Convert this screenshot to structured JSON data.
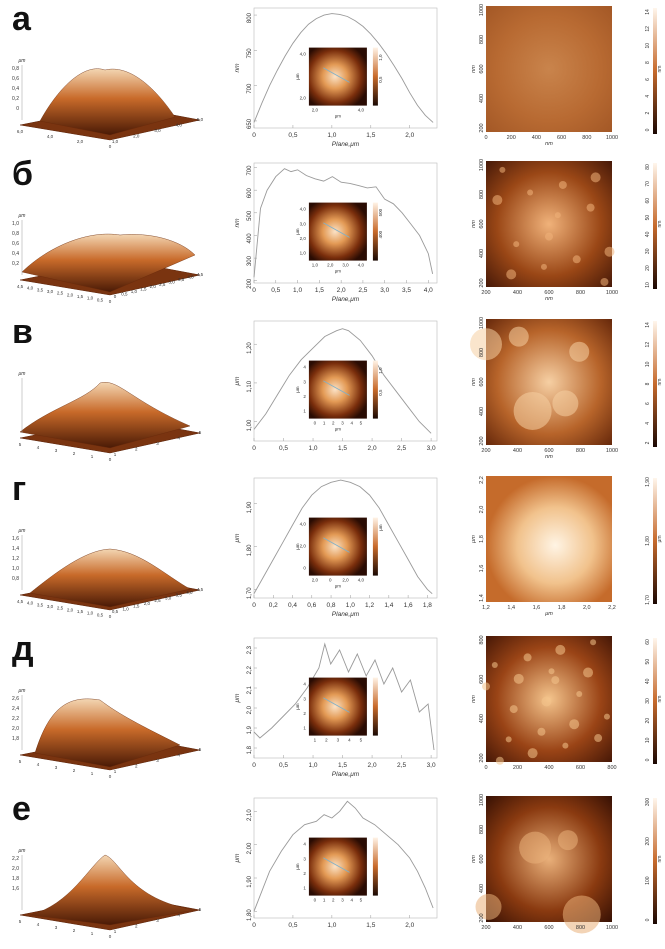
{
  "rows": [
    {
      "label": "а",
      "profile": {
        "ylabel": "nm",
        "xlabel": "Plane,μm",
        "yticks": [
          "650",
          "700",
          "750",
          "800"
        ],
        "xticks": [
          "0",
          "0,5",
          "1,0",
          "1,5",
          "2,0"
        ],
        "inset_xticks": [
          "2,0",
          "4,0"
        ],
        "inset_yticks": [
          "4,0",
          "2,0"
        ],
        "inset_ylabel": "μm",
        "inset_xlabel": "μm",
        "inset_cb": [
          "1,0",
          "0,5"
        ]
      },
      "surface": {
        "zlabel": "μm",
        "zticks": [
          "0,8",
          "0,6",
          "0,4",
          "0,2",
          "0"
        ],
        "axticks_left": [
          "6,0",
          "4,0",
          "2,0",
          "0"
        ],
        "axticks_right": [
          "1,0",
          "2,0",
          "3,0",
          "4,0",
          "5,0"
        ]
      },
      "map": {
        "ylabel": "nm",
        "xlabel": "nm",
        "xticks": [
          "0",
          "200",
          "400",
          "600",
          "800",
          "1000"
        ],
        "yticks": [
          "1000",
          "800",
          "600",
          "400",
          "200"
        ]
      },
      "colorbar": {
        "ticks": [
          "14",
          "12",
          "10",
          "8",
          "6",
          "4",
          "2",
          "0"
        ],
        "unit": "nm"
      }
    },
    {
      "label": "б",
      "profile": {
        "ylabel": "nm",
        "xlabel": "Plane,μm",
        "yticks": [
          "200",
          "300",
          "400",
          "500",
          "600",
          "700"
        ],
        "xticks": [
          "0",
          "0,5",
          "1,0",
          "1,5",
          "2,0",
          "2,5",
          "3,0",
          "3,5",
          "4,0"
        ],
        "inset_xticks": [
          "1,0",
          "2,0",
          "3,0",
          "4,0"
        ],
        "inset_yticks": [
          "4,0",
          "3,0",
          "2,0",
          "1,0"
        ],
        "inset_ylabel": "μm",
        "inset_xlabel": "μm",
        "inset_cb": [
          "500",
          "400"
        ]
      },
      "surface": {
        "zlabel": "μm",
        "zticks": [
          "1,0",
          "0,8",
          "0,6",
          "0,4",
          "0,2"
        ],
        "axticks_left": [
          "4,5",
          "4,0",
          "3,5",
          "3,0",
          "2,5",
          "2,0",
          "1,5",
          "1,0",
          "0,5",
          "0"
        ],
        "axticks_right": [
          "0",
          "0,5",
          "1,0",
          "1,5",
          "2,0",
          "2,5",
          "3,0",
          "3,5",
          "4,0",
          "4,5"
        ]
      },
      "map": {
        "ylabel": "nm",
        "xlabel": "nm",
        "xticks": [
          "200",
          "400",
          "600",
          "800",
          "1000"
        ],
        "yticks": [
          "1000",
          "800",
          "600",
          "400",
          "200"
        ]
      },
      "colorbar": {
        "ticks": [
          "80",
          "70",
          "60",
          "50",
          "40",
          "30",
          "20",
          "10"
        ],
        "unit": "nm"
      }
    },
    {
      "label": "в",
      "profile": {
        "ylabel": "μm",
        "xlabel": "",
        "yticks": [
          "1,00",
          "1,10",
          "1,20"
        ],
        "xticks": [
          "0",
          "0,5",
          "1,0",
          "1,5",
          "2,0",
          "2,5",
          "3,0"
        ],
        "inset_xticks": [
          "0",
          "1",
          "2",
          "3",
          "4",
          "5"
        ],
        "inset_yticks": [
          "4",
          "3",
          "2",
          "1"
        ],
        "inset_ylabel": "μm",
        "inset_xlabel": "μm",
        "inset_cb": [
          "1,0",
          "0,5"
        ]
      },
      "surface": {
        "zlabel": "μm",
        "zticks": [],
        "axticks_left": [
          "5",
          "4",
          "3",
          "2",
          "1",
          "0"
        ],
        "axticks_right": [
          "1",
          "2",
          "3",
          "4",
          "5"
        ]
      },
      "map": {
        "ylabel": "nm",
        "xlabel": "nm",
        "xticks": [
          "200",
          "400",
          "600",
          "800",
          "1000"
        ],
        "yticks": [
          "1000",
          "800",
          "600",
          "400",
          "200"
        ]
      },
      "colorbar": {
        "ticks": [
          "14",
          "12",
          "10",
          "8",
          "6",
          "4",
          "2"
        ],
        "unit": "nm"
      }
    },
    {
      "label": "г",
      "profile": {
        "ylabel": "μm",
        "xlabel": "Plane,μm",
        "yticks": [
          "1,70",
          "1,80",
          "1,90"
        ],
        "xticks": [
          "0",
          "0,2",
          "0,4",
          "0,6",
          "0,8",
          "1,0",
          "1,2",
          "1,4",
          "1,6",
          "1,8"
        ],
        "inset_xticks": [
          "2,0",
          "0",
          "2,0",
          "4,0"
        ],
        "inset_yticks": [
          "4,0",
          "2,0",
          "0"
        ],
        "inset_ylabel": "μm",
        "inset_xlabel": "μm",
        "inset_cb": [
          "μm"
        ]
      },
      "surface": {
        "zlabel": "μm",
        "zticks": [
          "1,6",
          "1,4",
          "1,2",
          "1,0",
          "0,8"
        ],
        "axticks_left": [
          "4,5",
          "4,0",
          "3,5",
          "3,0",
          "2,5",
          "2,0",
          "1,5",
          "1,0",
          "0,5",
          "0"
        ],
        "axticks_right": [
          "0,5",
          "1,0",
          "1,5",
          "2,0",
          "2,5",
          "3,0",
          "3,5",
          "4,0",
          "4,5"
        ]
      },
      "map": {
        "ylabel": "μm",
        "xlabel": "μm",
        "xticks": [
          "1,2",
          "1,4",
          "1,6",
          "1,8",
          "2,0",
          "2,2"
        ],
        "yticks": [
          "2,2",
          "2,0",
          "1,8",
          "1,6",
          "1,4"
        ]
      },
      "colorbar": {
        "ticks": [
          "1,90",
          "1,80",
          "1,70"
        ],
        "unit": "μm"
      }
    },
    {
      "label": "д",
      "profile": {
        "ylabel": "μm",
        "xlabel": "Plane,μm",
        "yticks": [
          "1,8",
          "1,9",
          "2,0",
          "2,1",
          "2,2",
          "2,3"
        ],
        "xticks": [
          "0",
          "0,5",
          "1,0",
          "1,5",
          "2,0",
          "2,5",
          "3,0"
        ],
        "inset_xticks": [
          "1",
          "2",
          "3",
          "4",
          "5"
        ],
        "inset_yticks": [
          "4",
          "3",
          "2",
          "1"
        ],
        "inset_ylabel": "μm",
        "inset_xlabel": "",
        "inset_cb": []
      },
      "surface": {
        "zlabel": "μm",
        "zticks": [
          "2,6",
          "2,4",
          "2,2",
          "2,0",
          "1,8"
        ],
        "axticks_left": [
          "5",
          "4",
          "3",
          "2",
          "1",
          "0"
        ],
        "axticks_right": [
          "1",
          "2",
          "3",
          "4",
          "5"
        ]
      },
      "map": {
        "ylabel": "nm",
        "xlabel": "",
        "xticks": [
          "0",
          "200",
          "400",
          "600",
          "800"
        ],
        "yticks": [
          "800",
          "600",
          "400",
          "200"
        ]
      },
      "colorbar": {
        "ticks": [
          "60",
          "50",
          "40",
          "30",
          "20",
          "10",
          "0"
        ],
        "unit": "nm"
      }
    },
    {
      "label": "е",
      "profile": {
        "ylabel": "μm",
        "xlabel": "",
        "yticks": [
          "1,80",
          "1,90",
          "2,00",
          "2,10"
        ],
        "xticks": [
          "0",
          "0,5",
          "1,0",
          "1,5",
          "2,0"
        ],
        "inset_xticks": [
          "0",
          "1",
          "2",
          "3",
          "4",
          "5"
        ],
        "inset_yticks": [
          "4",
          "3",
          "2",
          "1"
        ],
        "inset_ylabel": "μm",
        "inset_xlabel": "",
        "inset_cb": []
      },
      "surface": {
        "zlabel": "μm",
        "zticks": [
          "2,2",
          "2,0",
          "1,8",
          "1,6"
        ],
        "axticks_left": [
          "5",
          "4",
          "3",
          "2",
          "1",
          "0"
        ],
        "axticks_right": [
          "1",
          "2",
          "3",
          "4",
          "5"
        ]
      },
      "map": {
        "ylabel": "nm",
        "xlabel": "",
        "xticks": [
          "200",
          "400",
          "600",
          "800",
          "1000"
        ],
        "yticks": [
          "1000",
          "800",
          "600",
          "400",
          "200"
        ]
      },
      "colorbar": {
        "ticks": [
          "300",
          "200",
          "100",
          "0"
        ],
        "unit": "nm"
      }
    }
  ],
  "chart_data": [
    {
      "type": "line",
      "panel": "а",
      "xlabel": "Plane,μm",
      "ylabel": "nm",
      "xlim": [
        0,
        2.35
      ],
      "ylim": [
        640,
        810
      ],
      "x": [
        0,
        0.1,
        0.2,
        0.3,
        0.4,
        0.5,
        0.6,
        0.7,
        0.8,
        0.9,
        1.0,
        1.1,
        1.2,
        1.3,
        1.4,
        1.5,
        1.6,
        1.7,
        1.8,
        1.9,
        2.0,
        2.1,
        2.2,
        2.3
      ],
      "y": [
        648,
        675,
        700,
        722,
        742,
        760,
        775,
        787,
        795,
        800,
        802,
        801,
        798,
        792,
        784,
        773,
        760,
        745,
        728,
        710,
        690,
        672,
        658,
        648
      ]
    },
    {
      "type": "line",
      "panel": "б",
      "xlabel": "Plane,μm",
      "ylabel": "nm",
      "xlim": [
        0,
        4.2
      ],
      "ylim": [
        190,
        720
      ],
      "x": [
        0,
        0.15,
        0.3,
        0.5,
        0.7,
        0.85,
        1.0,
        1.2,
        1.4,
        1.6,
        1.8,
        2.0,
        2.2,
        2.4,
        2.6,
        2.8,
        3.0,
        3.2,
        3.4,
        3.6,
        3.8,
        4.0,
        4.1
      ],
      "y": [
        215,
        520,
        600,
        660,
        695,
        682,
        690,
        665,
        650,
        640,
        660,
        635,
        630,
        620,
        610,
        615,
        560,
        540,
        500,
        450,
        400,
        320,
        230
      ]
    },
    {
      "type": "line",
      "panel": "в",
      "xlabel": "",
      "ylabel": "μm",
      "xlim": [
        0,
        3.1
      ],
      "ylim": [
        0.95,
        1.26
      ],
      "x": [
        0,
        0.2,
        0.4,
        0.6,
        0.8,
        1.0,
        1.2,
        1.4,
        1.5,
        1.6,
        1.8,
        2.0,
        2.2,
        2.4,
        2.6,
        2.8,
        3.0
      ],
      "y": [
        0.98,
        1.02,
        1.07,
        1.12,
        1.16,
        1.19,
        1.22,
        1.235,
        1.24,
        1.235,
        1.21,
        1.17,
        1.12,
        1.08,
        1.04,
        1.0,
        0.97
      ]
    },
    {
      "type": "line",
      "panel": "г",
      "xlabel": "Plane,μm",
      "ylabel": "μm",
      "xlim": [
        0,
        1.9
      ],
      "ylim": [
        1.68,
        1.96
      ],
      "x": [
        0,
        0.1,
        0.2,
        0.3,
        0.4,
        0.5,
        0.6,
        0.7,
        0.8,
        0.9,
        1.0,
        1.1,
        1.2,
        1.3,
        1.4,
        1.5,
        1.6,
        1.7,
        1.8,
        1.85
      ],
      "y": [
        1.69,
        1.73,
        1.77,
        1.81,
        1.85,
        1.89,
        1.92,
        1.94,
        1.95,
        1.955,
        1.95,
        1.94,
        1.92,
        1.89,
        1.85,
        1.81,
        1.77,
        1.73,
        1.7,
        1.69
      ]
    },
    {
      "type": "line",
      "panel": "д",
      "xlabel": "Plane,μm",
      "ylabel": "μm",
      "xlim": [
        0,
        3.1
      ],
      "ylim": [
        1.75,
        2.35
      ],
      "x": [
        0,
        0.1,
        0.3,
        0.5,
        0.7,
        0.9,
        1.1,
        1.2,
        1.3,
        1.45,
        1.6,
        1.75,
        1.9,
        2.05,
        2.2,
        2.35,
        2.5,
        2.65,
        2.8,
        2.95,
        3.05
      ],
      "y": [
        1.88,
        1.85,
        1.9,
        1.96,
        2.02,
        2.1,
        2.2,
        2.32,
        2.22,
        2.29,
        2.18,
        2.27,
        2.16,
        2.24,
        2.12,
        2.2,
        2.08,
        2.14,
        1.98,
        2.02,
        1.79
      ]
    },
    {
      "type": "line",
      "panel": "е",
      "xlabel": "",
      "ylabel": "μm",
      "xlim": [
        0,
        2.35
      ],
      "ylim": [
        1.78,
        2.14
      ],
      "x": [
        0,
        0.1,
        0.2,
        0.35,
        0.5,
        0.65,
        0.8,
        0.9,
        1.0,
        1.1,
        1.2,
        1.3,
        1.4,
        1.55,
        1.7,
        1.85,
        2.0,
        2.1,
        2.2,
        2.3
      ],
      "y": [
        1.8,
        1.86,
        1.92,
        1.98,
        2.03,
        2.06,
        2.07,
        2.09,
        2.08,
        2.1,
        2.13,
        2.11,
        2.08,
        2.06,
        2.03,
        2.0,
        1.96,
        1.92,
        1.87,
        1.81
      ]
    }
  ]
}
